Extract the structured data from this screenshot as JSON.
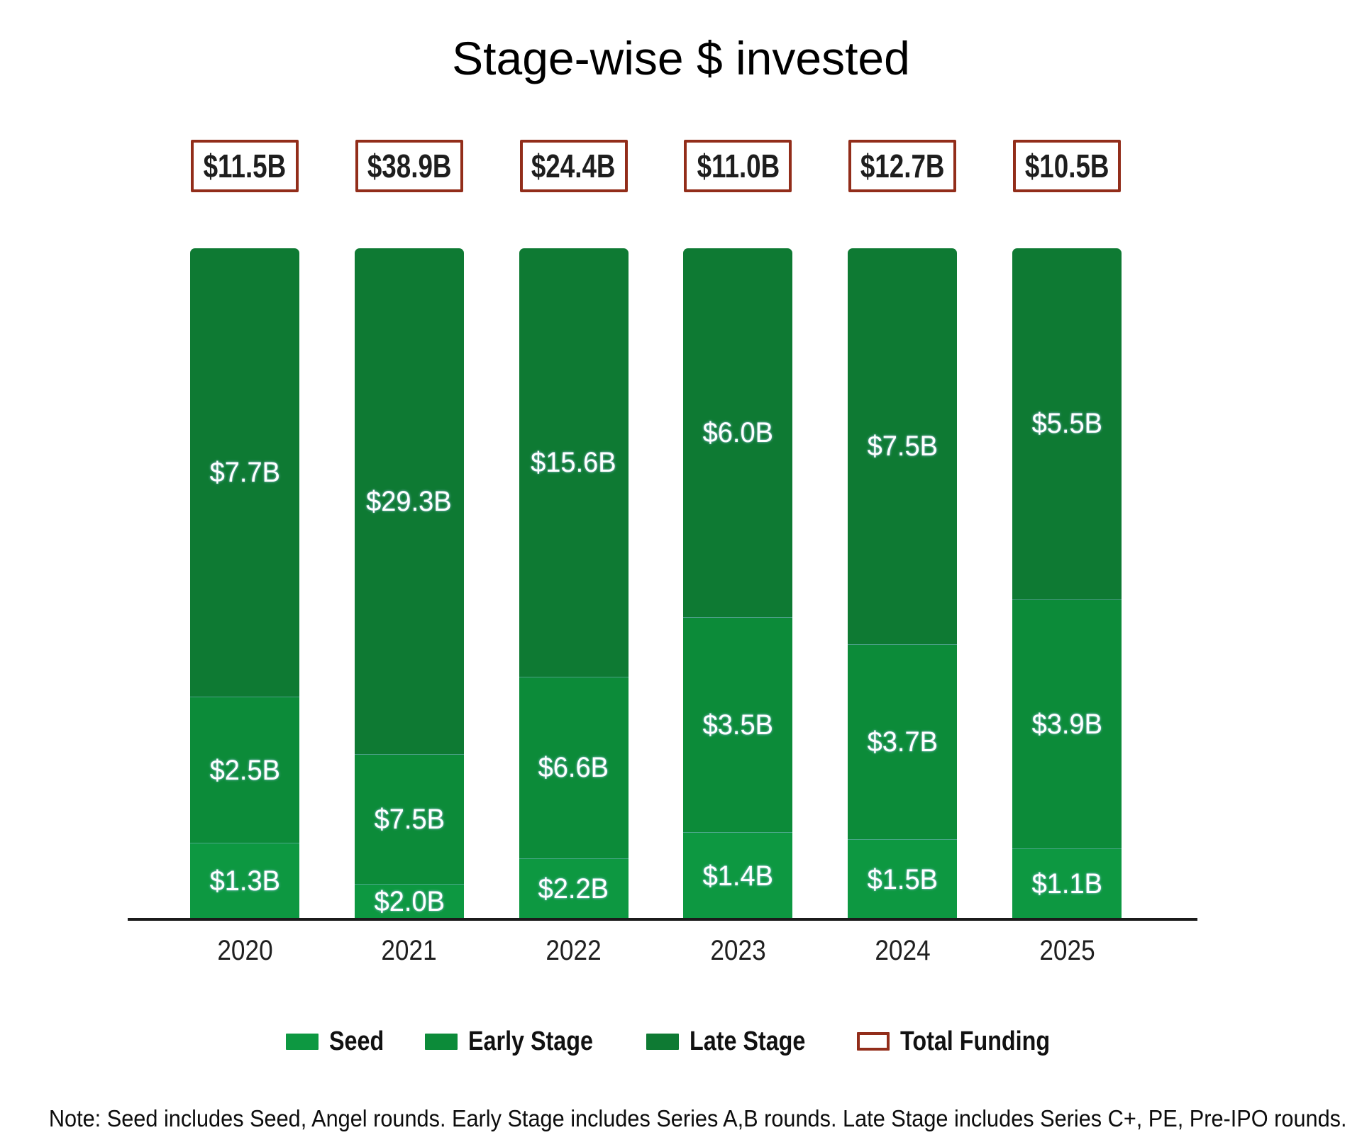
{
  "title": "Stage-wise $ invested",
  "note": "Note: Seed includes Seed, Angel rounds. Early Stage includes Series A,B rounds. Late Stage includes Series C+, PE, Pre-IPO rounds.",
  "colors": {
    "seed": "#0D9841",
    "early_stage": "#0C8B39",
    "late_stage": "#0E7A33",
    "total_funding_border": "#922D1A",
    "axis": "#1b1b1b",
    "label_text": "#ffffff"
  },
  "legend": {
    "items": [
      {
        "label": "Seed",
        "swatch": "fill",
        "color": "#0D9841"
      },
      {
        "label": "Early Stage",
        "swatch": "fill",
        "color": "#0C8B39"
      },
      {
        "label": "Late Stage",
        "swatch": "fill",
        "color": "#0E7A33"
      },
      {
        "label": "Total Funding",
        "swatch": "outline",
        "color": "#922D1A"
      }
    ]
  },
  "chart_data": {
    "type": "bar",
    "variant": "100-percent-stacked-column",
    "title": "Stage-wise $ invested",
    "categories": [
      "2020",
      "2021",
      "2022",
      "2023",
      "2024",
      "2025"
    ],
    "series": [
      {
        "name": "Seed",
        "color": "#0D9841",
        "values": [
          1.3,
          2.0,
          2.2,
          1.4,
          1.5,
          1.1
        ]
      },
      {
        "name": "Early Stage",
        "color": "#0C8B39",
        "values": [
          2.5,
          7.5,
          6.6,
          3.5,
          3.7,
          3.9
        ]
      },
      {
        "name": "Late Stage",
        "color": "#0E7A33",
        "values": [
          7.7,
          29.3,
          15.6,
          6.0,
          7.5,
          5.5
        ]
      }
    ],
    "totals": [
      11.5,
      38.9,
      24.4,
      11.0,
      12.7,
      10.5
    ],
    "value_prefix": "$",
    "value_suffix": "B",
    "stack_order_bottom_to_top": [
      "Seed",
      "Early Stage",
      "Late Stage"
    ],
    "totals_shown_as": "outlined boxes above bars",
    "legend_position": "bottom",
    "grid": false,
    "xlabel": "",
    "ylabel": ""
  }
}
